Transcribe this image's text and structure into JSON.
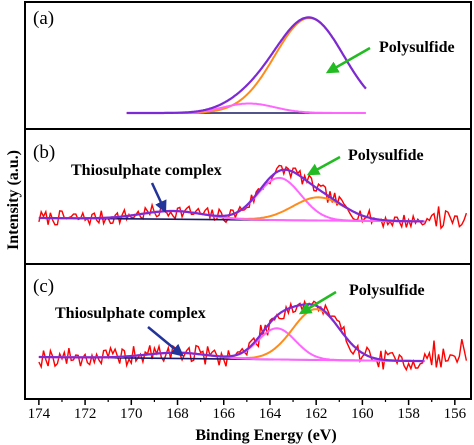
{
  "chart_data": {
    "type": "line",
    "xlabel": "Binding Energy (eV)",
    "ylabel": "Intensity (a.u.)",
    "x_ticks": [
      174,
      172,
      170,
      168,
      166,
      164,
      162,
      160,
      158,
      156
    ],
    "xlim": [
      174.6,
      155.3
    ],
    "colors": {
      "raw": "#ff0000",
      "envelope": "#7b2ad6",
      "polysulfide": "#ff8c1a",
      "thiosulphate": "#ff66ff",
      "background": "#1a1a66",
      "arrow_green": "#22bb22",
      "arrow_blue": "#223399",
      "frame": "#000000"
    },
    "panels": [
      {
        "label": "(a)",
        "annotations": [
          {
            "text": "Polysulfide",
            "arrow": "green"
          }
        ],
        "background": {
          "x1": 170.2,
          "y1": 0.0,
          "x2": 160.0,
          "y2": 0.0
        },
        "components": [
          {
            "role": "polysulfide",
            "center": 162.3,
            "fwhm": 3.5,
            "height": 1.0
          },
          {
            "role": "minor",
            "center": 164.9,
            "fwhm": 2.6,
            "height": 0.1
          }
        ],
        "has_raw": false,
        "envelope_range": [
          170.2,
          159.8
        ],
        "ylim": [
          -0.15,
          1.25
        ]
      },
      {
        "label": "(b)",
        "annotations": [
          {
            "text": "Thiosulphate complex",
            "arrow": "blue"
          },
          {
            "text": "Polysulfide",
            "arrow": "green"
          }
        ],
        "background": {
          "x1": 174.0,
          "y1": 0.0,
          "x2": 157.3,
          "y2": -0.05
        },
        "baseline_bump": {
          "center": 168.2,
          "width": 3.2,
          "height": 0.12
        },
        "components": [
          {
            "role": "thiosulphate",
            "center": 163.6,
            "fwhm": 2.2,
            "height": 0.62
          },
          {
            "role": "polysulfide",
            "center": 161.9,
            "fwhm": 2.6,
            "height": 0.34
          }
        ],
        "has_raw": true,
        "raw_range": [
          174.0,
          155.5
        ],
        "noise": 0.11,
        "seed": 7,
        "envelope_range": [
          174.0,
          157.3
        ],
        "ylim": [
          -0.55,
          1.1
        ]
      },
      {
        "label": "(c)",
        "annotations": [
          {
            "text": "Thiosulphate complex",
            "arrow": "blue"
          },
          {
            "text": "Polysulfide",
            "arrow": "green"
          }
        ],
        "background": {
          "x1": 174.0,
          "y1": 0.0,
          "x2": 157.3,
          "y2": -0.05
        },
        "baseline_bump": {
          "center": 168.0,
          "width": 3.2,
          "height": 0.07
        },
        "components": [
          {
            "role": "thiosulphate",
            "center": 163.7,
            "fwhm": 1.9,
            "height": 0.38
          },
          {
            "role": "polysulfide",
            "center": 162.0,
            "fwhm": 2.4,
            "height": 0.62
          }
        ],
        "has_raw": true,
        "raw_range": [
          174.0,
          155.5
        ],
        "noise": 0.12,
        "seed": 19,
        "envelope_range": [
          174.0,
          157.3
        ],
        "ylim": [
          -0.55,
          1.1
        ]
      }
    ]
  }
}
